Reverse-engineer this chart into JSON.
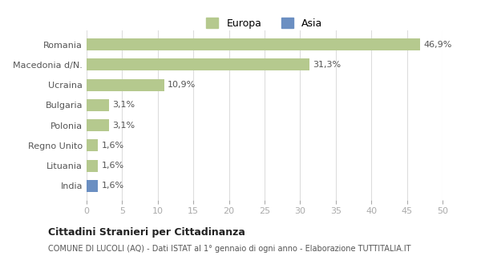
{
  "categories": [
    "Romania",
    "Macedonia d/N.",
    "Ucraina",
    "Bulgaria",
    "Polonia",
    "Regno Unito",
    "Lituania",
    "India"
  ],
  "values": [
    46.9,
    31.3,
    10.9,
    3.1,
    3.1,
    1.6,
    1.6,
    1.6
  ],
  "labels": [
    "46,9%",
    "31,3%",
    "10,9%",
    "3,1%",
    "3,1%",
    "1,6%",
    "1,6%",
    "1,6%"
  ],
  "bar_colors": [
    "#b5c98e",
    "#b5c98e",
    "#b5c98e",
    "#b5c98e",
    "#b5c98e",
    "#b5c98e",
    "#b5c98e",
    "#6b8fc2"
  ],
  "europa_color": "#b5c98e",
  "asia_color": "#6b8fc2",
  "xlim": [
    0,
    50
  ],
  "xticks": [
    0,
    5,
    10,
    15,
    20,
    25,
    30,
    35,
    40,
    45,
    50
  ],
  "title": "Cittadini Stranieri per Cittadinanza",
  "subtitle": "COMUNE DI LUCOLI (AQ) - Dati ISTAT al 1° gennaio di ogni anno - Elaborazione TUTTITALIA.IT",
  "legend_labels": [
    "Europa",
    "Asia"
  ],
  "background_color": "#ffffff",
  "grid_color": "#dddddd"
}
